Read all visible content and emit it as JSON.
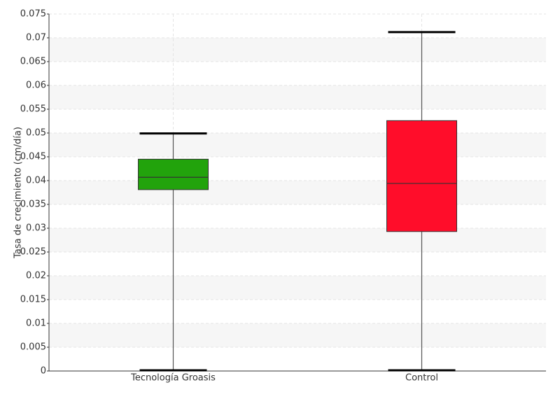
{
  "chart_data": {
    "type": "box",
    "y_label": "Tasa de crecimiento (cm/día)",
    "categories": [
      "Tecnología Groasis",
      "Control"
    ],
    "boxes": [
      {
        "min": 0,
        "q1": 0.0381,
        "median": 0.0407,
        "q3": 0.0445,
        "max": 0.0499,
        "color": "#22a30c"
      },
      {
        "min": 0,
        "q1": 0.0293,
        "median": 0.0394,
        "q3": 0.0526,
        "max": 0.0712,
        "color": "#ff0d2a"
      }
    ],
    "ylim": [
      0,
      0.075
    ],
    "yticks": [
      0,
      0.005,
      0.01,
      0.015,
      0.02,
      0.025,
      0.03,
      0.035,
      0.04,
      0.045,
      0.05,
      0.055,
      0.06,
      0.065,
      0.07,
      0.075
    ],
    "grid": true
  }
}
